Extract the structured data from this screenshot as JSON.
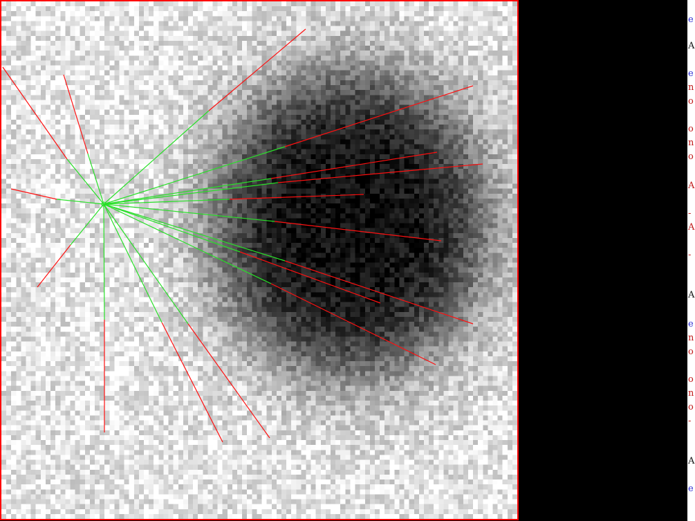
{
  "viewer": {
    "image_size": [
      105,
      105
    ],
    "grid_cells": 105,
    "frame_color": "#ff0000",
    "ray_segment_colors": {
      "inside": "#28e028",
      "outside": "#ff1010"
    }
  },
  "side_strip": {
    "background": "#ffffff",
    "glyphs": [
      {
        "text": "e",
        "color": "blue"
      },
      {
        "text": "A",
        "color": "black"
      },
      {
        "text": "e",
        "color": "blue"
      },
      {
        "text": "n",
        "color": "red"
      },
      {
        "text": "o",
        "color": "red"
      },
      {
        "text": "o",
        "color": "red"
      },
      {
        "text": "n",
        "color": "red"
      },
      {
        "text": "o",
        "color": "red"
      },
      {
        "text": "A",
        "color": "red"
      },
      {
        "text": "-",
        "color": "red"
      },
      {
        "text": "A",
        "color": "red"
      },
      {
        "text": "-",
        "color": "red"
      },
      {
        "text": "A",
        "color": "black"
      },
      {
        "text": "e",
        "color": "blue"
      },
      {
        "text": "n",
        "color": "red"
      },
      {
        "text": "o",
        "color": "red"
      },
      {
        "text": "o",
        "color": "red"
      },
      {
        "text": "n",
        "color": "red"
      },
      {
        "text": "o",
        "color": "red"
      },
      {
        "text": "-",
        "color": "red"
      },
      {
        "text": "A",
        "color": "black"
      },
      {
        "text": "e",
        "color": "blue"
      }
    ]
  }
}
